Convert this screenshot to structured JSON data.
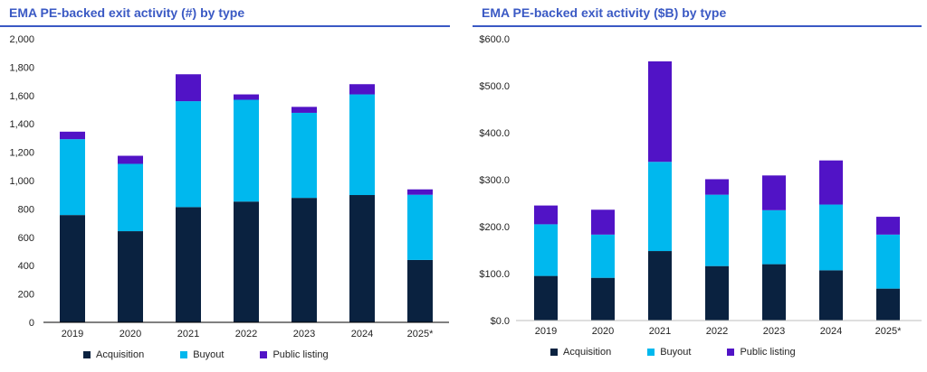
{
  "chart_data": [
    {
      "type": "bar",
      "stacked": true,
      "title": "EMA PE-backed exit activity (#) by type",
      "categories": [
        "2019",
        "2020",
        "2021",
        "2022",
        "2023",
        "2024",
        "2025*"
      ],
      "series": [
        {
          "name": "Acquisition",
          "color": "#0a2240",
          "values": [
            757,
            643,
            813,
            852,
            878,
            898,
            440
          ]
        },
        {
          "name": "Buyout",
          "color": "#00b8ee",
          "values": [
            535,
            475,
            747,
            718,
            600,
            710,
            460
          ]
        },
        {
          "name": "Public listing",
          "color": "#5113c6",
          "values": [
            53,
            57,
            190,
            38,
            42,
            72,
            38
          ]
        }
      ],
      "ylim": [
        0,
        2000
      ],
      "yticks": [
        0,
        200,
        400,
        600,
        800,
        1000,
        1200,
        1400,
        1600,
        1800,
        2000
      ],
      "ytick_labels": [
        "0",
        "200",
        "400",
        "600",
        "800",
        "1,000",
        "1,200",
        "1,400",
        "1,600",
        "1,800",
        "2,000"
      ],
      "legend": "bottom"
    },
    {
      "type": "bar",
      "stacked": true,
      "title": "EMA PE-backed exit activity ($B) by type",
      "categories": [
        "2019",
        "2020",
        "2021",
        "2022",
        "2023",
        "2024",
        "2025*"
      ],
      "series": [
        {
          "name": "Acquisition",
          "color": "#0a2240",
          "values": [
            95,
            91,
            148,
            116,
            120,
            107,
            68
          ]
        },
        {
          "name": "Buyout",
          "color": "#00b8ee",
          "values": [
            110,
            92,
            190,
            152,
            115,
            140,
            115
          ]
        },
        {
          "name": "Public listing",
          "color": "#5113c6",
          "values": [
            40,
            53,
            214,
            33,
            74,
            94,
            38
          ]
        }
      ],
      "ylim": [
        0,
        600
      ],
      "yticks": [
        0,
        100,
        200,
        300,
        400,
        500,
        600
      ],
      "ytick_labels": [
        "$0.0",
        "$100.0",
        "$200.0",
        "$300.0",
        "$400.0",
        "$500.0",
        "$600.0"
      ],
      "legend": "bottom"
    }
  ]
}
